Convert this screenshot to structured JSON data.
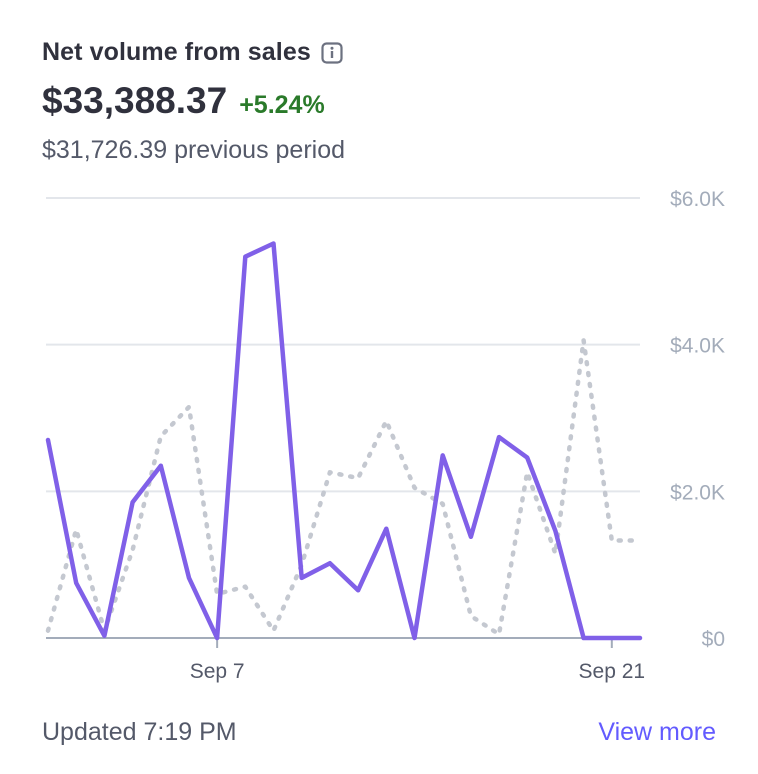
{
  "card": {
    "title": "Net volume from sales",
    "value": "$33,388.37",
    "delta": "+5.24%",
    "previous": "$31,726.39 previous period",
    "updated": "Updated 7:19 PM",
    "view_more": "View more",
    "info_icon": "info-icon"
  },
  "colors": {
    "current": "#8060e8",
    "previous": "#c4c8d0",
    "grid": "#e3e6eb",
    "baseline": "#a3acba",
    "delta": "#2a7a2a",
    "link": "#635bff"
  },
  "chart_data": {
    "type": "line",
    "x": [
      "Sep 1",
      "Sep 2",
      "Sep 3",
      "Sep 4",
      "Sep 5",
      "Sep 6",
      "Sep 7",
      "Sep 8",
      "Sep 9",
      "Sep 10",
      "Sep 11",
      "Sep 12",
      "Sep 13",
      "Sep 14",
      "Sep 15",
      "Sep 16",
      "Sep 17",
      "Sep 18",
      "Sep 19",
      "Sep 20",
      "Sep 21",
      "Sep 22"
    ],
    "x_tick_labels": [
      "Sep 7",
      "Sep 21"
    ],
    "y_tick_labels": [
      "$6.0K",
      "$4.0K",
      "$2.0K",
      "$0"
    ],
    "y_ticks": [
      6000,
      4000,
      2000,
      0
    ],
    "ylim": [
      0,
      6000
    ],
    "grid": true,
    "series": [
      {
        "style": "solid",
        "values": [
          2700,
          750,
          30,
          1850,
          2350,
          820,
          0,
          5200,
          5380,
          820,
          1020,
          650,
          1490,
          0,
          2490,
          1380,
          2740,
          2460,
          1460,
          0,
          0,
          0
        ]
      },
      {
        "style": "dotted",
        "values": [
          100,
          1480,
          100,
          1200,
          2750,
          3150,
          600,
          700,
          100,
          1000,
          2260,
          2180,
          2960,
          2050,
          1830,
          300,
          50,
          2260,
          1150,
          4060,
          1330,
          1330
        ]
      }
    ]
  }
}
